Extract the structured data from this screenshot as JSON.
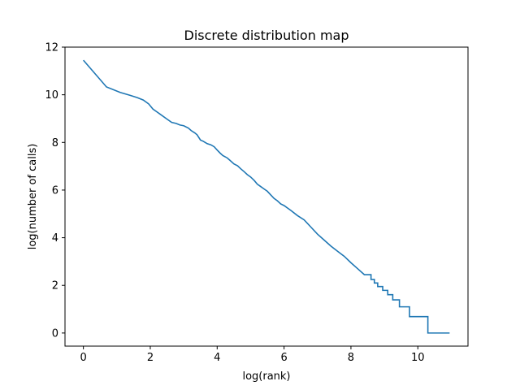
{
  "chart_data": {
    "type": "line",
    "title": "Discrete distribution map",
    "xlabel": "log(rank)",
    "ylabel": "log(number of calls)",
    "xlim": [
      -0.55,
      11.5
    ],
    "ylim": [
      -0.55,
      12
    ],
    "xticks": [
      0,
      2,
      4,
      6,
      8,
      10
    ],
    "yticks": [
      0,
      2,
      4,
      6,
      8,
      10,
      12
    ],
    "grid": false,
    "series": [
      {
        "color": "#1f77b4",
        "step": true,
        "x": [
          0,
          0.69,
          1.1,
          1.39,
          1.61,
          1.79,
          1.95,
          2.08,
          2.2,
          2.3,
          2.48,
          2.64,
          2.77,
          2.89,
          3.0,
          3.14,
          3.22,
          3.33,
          3.4,
          3.5,
          3.58,
          3.7,
          3.81,
          3.91,
          4.0,
          4.09,
          4.17,
          4.3,
          4.38,
          4.5,
          4.61,
          4.7,
          4.8,
          4.9,
          5.0,
          5.11,
          5.2,
          5.3,
          5.4,
          5.5,
          5.6,
          5.7,
          5.8,
          5.9,
          6.0,
          6.2,
          6.4,
          6.6,
          6.8,
          7.0,
          7.2,
          7.4,
          7.6,
          7.8,
          8.0,
          8.2,
          8.4,
          8.6,
          8.7,
          8.8,
          8.95,
          9.1,
          9.25,
          9.45,
          9.75,
          10.3,
          10.95
        ],
        "y": [
          11.45,
          10.33,
          10.1,
          9.98,
          9.88,
          9.78,
          9.62,
          9.4,
          9.28,
          9.18,
          9.0,
          8.84,
          8.8,
          8.73,
          8.7,
          8.6,
          8.5,
          8.4,
          8.32,
          8.1,
          8.05,
          7.95,
          7.9,
          7.82,
          7.68,
          7.55,
          7.45,
          7.35,
          7.25,
          7.1,
          7.02,
          6.9,
          6.78,
          6.65,
          6.55,
          6.4,
          6.25,
          6.15,
          6.05,
          5.95,
          5.8,
          5.65,
          5.55,
          5.42,
          5.35,
          5.15,
          4.93,
          4.75,
          4.45,
          4.15,
          3.9,
          3.65,
          3.43,
          3.22,
          2.95,
          2.7,
          2.45,
          2.25,
          2.1,
          1.95,
          1.79,
          1.61,
          1.39,
          1.1,
          0.69,
          0.0,
          0.0
        ]
      }
    ]
  }
}
